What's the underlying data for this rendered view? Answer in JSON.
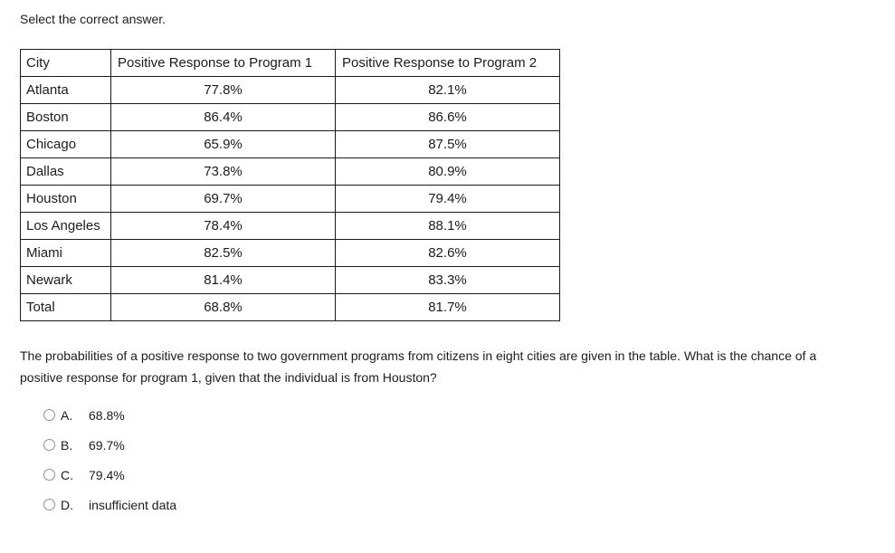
{
  "prompt": "Select the correct answer.",
  "table": {
    "headers": [
      "City",
      "Positive Response to Program 1",
      "Positive Response to Program 2"
    ],
    "rows": [
      [
        "Atlanta",
        "77.8%",
        "82.1%"
      ],
      [
        "Boston",
        "86.4%",
        "86.6%"
      ],
      [
        "Chicago",
        "65.9%",
        "87.5%"
      ],
      [
        "Dallas",
        "73.8%",
        "80.9%"
      ],
      [
        "Houston",
        "69.7%",
        "79.4%"
      ],
      [
        "Los Angeles",
        "78.4%",
        "88.1%"
      ],
      [
        "Miami",
        "82.5%",
        "82.6%"
      ],
      [
        "Newark",
        "81.4%",
        "83.3%"
      ],
      [
        "Total",
        "68.8%",
        "81.7%"
      ]
    ]
  },
  "question": {
    "lines": [
      "The probabilities of a positive response to two government programs from citizens in eight cities are given in the table. What is the chance of a",
      "positive response for program 1, given that the individual is from Houston?"
    ]
  },
  "options": [
    {
      "letter": "A.",
      "text": "68.8%",
      "selected": false
    },
    {
      "letter": "B.",
      "text": "69.7%",
      "selected": false
    },
    {
      "letter": "C.",
      "text": "79.4%",
      "selected": false
    },
    {
      "letter": "D.",
      "text": "insufficient data",
      "selected": false
    }
  ],
  "colors": {
    "background": "#ffffff",
    "text": "#1c1c1c",
    "table_border": "#1b1b1b",
    "radio_border": "#8f8f8f"
  }
}
